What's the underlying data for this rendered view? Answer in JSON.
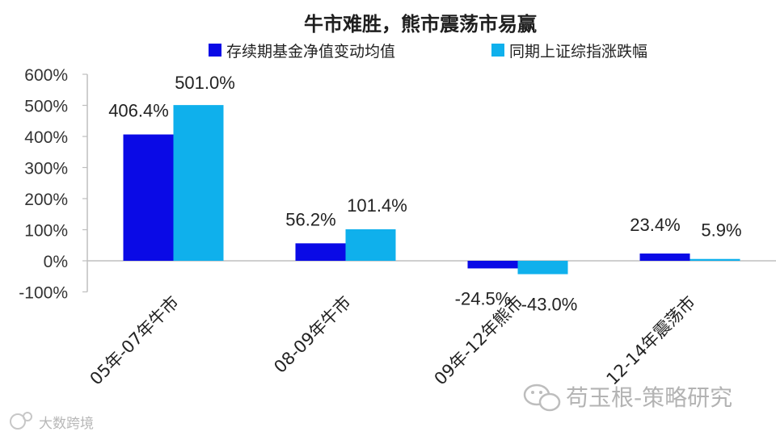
{
  "chart_data": {
    "type": "bar",
    "title": "牛市难胜，熊市震荡市易赢",
    "categories": [
      "05年-07年牛市",
      "08-09年牛市",
      "09年-12年熊市",
      "12-14年震荡市"
    ],
    "series": [
      {
        "name": "存续期基金净值变动均值",
        "values": [
          406.4,
          56.2,
          -24.5,
          23.4
        ],
        "labels": [
          "406.4%",
          "56.2%",
          "-24.5%",
          "23.4%"
        ],
        "color": "#0a0ae6"
      },
      {
        "name": "同期上证综指涨跌幅",
        "values": [
          501.0,
          101.4,
          -43.0,
          5.9
        ],
        "labels": [
          "501.0%",
          "101.4%",
          "-43.0%",
          "5.9%"
        ],
        "color": "#0fb0ec"
      }
    ],
    "ylim": [
      -100,
      600
    ],
    "yticks": [
      600,
      500,
      400,
      300,
      200,
      100,
      0,
      -100
    ],
    "ytick_labels": [
      "600%",
      "500%",
      "400%",
      "300%",
      "200%",
      "100%",
      "0%",
      "-100%"
    ],
    "xlabel": "",
    "ylabel": "",
    "grid": false,
    "legend_position": "top"
  },
  "watermarks": {
    "top": "苟玉根-策略研究",
    "bottom": "大数跨境"
  }
}
